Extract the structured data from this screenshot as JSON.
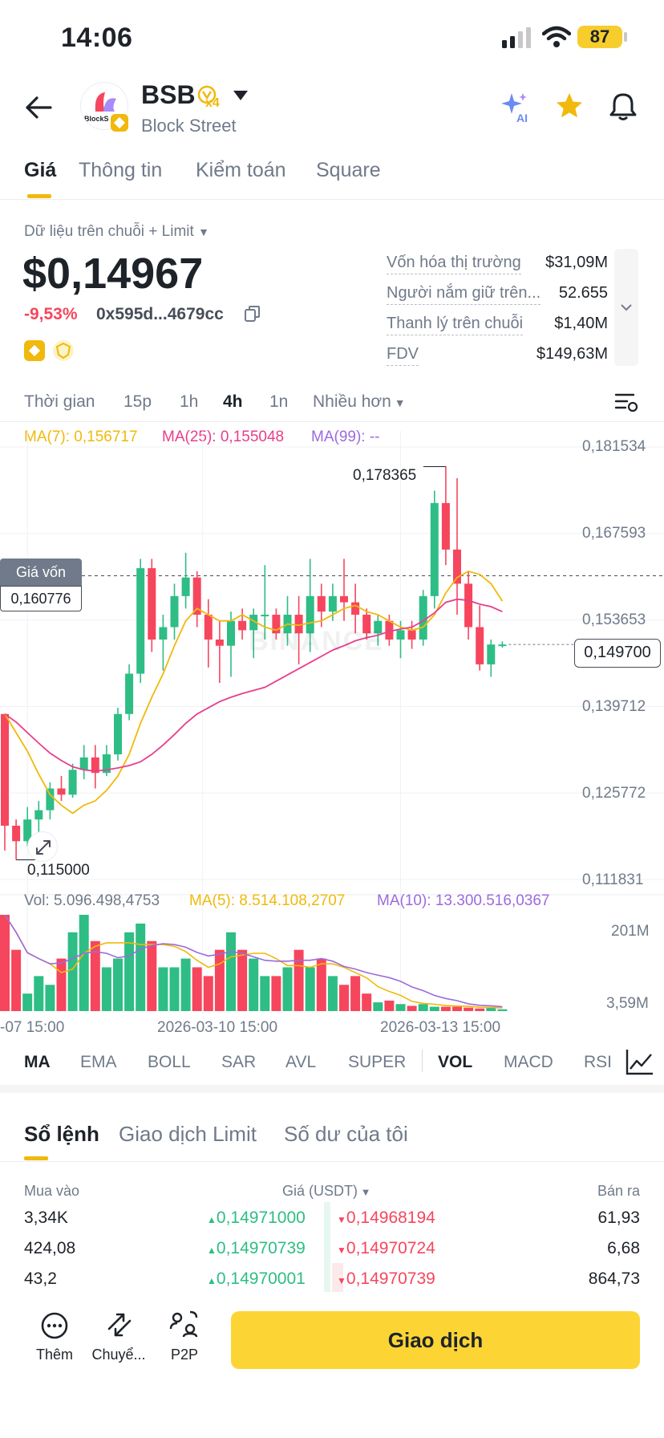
{
  "status_bar": {
    "time": "14:06",
    "battery": "87"
  },
  "header": {
    "logo_text": "BlockS",
    "symbol": "BSB",
    "multiplier": "x4",
    "name": "Block Street"
  },
  "tabs": [
    {
      "label": "Giá",
      "active": true
    },
    {
      "label": "Thông tin",
      "active": false
    },
    {
      "label": "Kiểm toán",
      "active": false
    },
    {
      "label": "Square",
      "active": false
    }
  ],
  "price_panel": {
    "source_label": "Dữ liệu trên chuỗi + Limit",
    "price": "$0,14967",
    "change_pct": "-9,53%",
    "contract": "0x595d...4679cc",
    "stats": [
      {
        "label": "Vốn hóa thị trường",
        "value": "$31,09M"
      },
      {
        "label": "Người nắm giữ trên...",
        "value": "52.655"
      },
      {
        "label": "Thanh lý trên chuỗi",
        "value": "$1,40M"
      },
      {
        "label": "FDV",
        "value": "$149,63M"
      }
    ]
  },
  "timeframes": [
    "Thời gian",
    "15p",
    "1h",
    "4h",
    "1n",
    "Nhiều hơn"
  ],
  "active_timeframe": "4h",
  "chart": {
    "ma_labels": {
      "ma7": "MA(7): 0,156717",
      "ma25": "MA(25): 0,155048",
      "ma99": "MA(99): --"
    },
    "cost_label": "Giá vốn",
    "cost_value": "0,160776",
    "current_price_label": "0,149700",
    "high_label": "0,178365",
    "low_label": "0,115000",
    "watermark": "BINANCE",
    "y_ticks": [
      "0,181534",
      "0,167593",
      "0,153653",
      "0,139712",
      "0,125772",
      "0,111831"
    ],
    "vol_labels": {
      "vol": "Vol: 5.096.498,4753",
      "ma5": "MA(5): 8.514.108,2707",
      "ma10": "MA(10): 13.300.516,0367"
    },
    "vol_ticks": [
      "201M",
      "3,59M"
    ],
    "x_ticks": [
      "-07 15:00",
      "2026-03-10 15:00",
      "2026-03-13 15:00"
    ],
    "colors": {
      "up": "#2ebd85",
      "down": "#f6465d",
      "ma7": "#f0b90b",
      "ma25": "#e83e8c",
      "ma99": "#9c6ade"
    }
  },
  "chart_data": {
    "type": "candlestick",
    "x_ticks": [
      "-07 15:00",
      "2026-03-10 15:00",
      "2026-03-13 15:00"
    ],
    "ylim": [
      0.111831,
      0.181534
    ],
    "high": 0.178365,
    "low": 0.115,
    "last": 0.1497,
    "candles": [
      {
        "o": 0.1385,
        "h": 0.1385,
        "l": 0.1165,
        "c": 0.1205
      },
      {
        "o": 0.1205,
        "h": 0.1215,
        "l": 0.115,
        "c": 0.118
      },
      {
        "o": 0.118,
        "h": 0.1235,
        "l": 0.1172,
        "c": 0.1215
      },
      {
        "o": 0.1215,
        "h": 0.1245,
        "l": 0.1195,
        "c": 0.123
      },
      {
        "o": 0.123,
        "h": 0.1275,
        "l": 0.1215,
        "c": 0.1265
      },
      {
        "o": 0.1265,
        "h": 0.1285,
        "l": 0.1245,
        "c": 0.1255
      },
      {
        "o": 0.1255,
        "h": 0.1305,
        "l": 0.125,
        "c": 0.1295
      },
      {
        "o": 0.1295,
        "h": 0.1335,
        "l": 0.128,
        "c": 0.1315
      },
      {
        "o": 0.1315,
        "h": 0.1335,
        "l": 0.1265,
        "c": 0.129
      },
      {
        "o": 0.129,
        "h": 0.1335,
        "l": 0.1285,
        "c": 0.132
      },
      {
        "o": 0.132,
        "h": 0.1395,
        "l": 0.131,
        "c": 0.1385
      },
      {
        "o": 0.1385,
        "h": 0.1465,
        "l": 0.1375,
        "c": 0.145
      },
      {
        "o": 0.145,
        "h": 0.1635,
        "l": 0.1435,
        "c": 0.162
      },
      {
        "o": 0.162,
        "h": 0.1635,
        "l": 0.1485,
        "c": 0.1505
      },
      {
        "o": 0.1505,
        "h": 0.1545,
        "l": 0.1455,
        "c": 0.1525
      },
      {
        "o": 0.1525,
        "h": 0.1595,
        "l": 0.1505,
        "c": 0.1575
      },
      {
        "o": 0.1575,
        "h": 0.1645,
        "l": 0.1555,
        "c": 0.1605
      },
      {
        "o": 0.1605,
        "h": 0.1615,
        "l": 0.1525,
        "c": 0.1545
      },
      {
        "o": 0.1545,
        "h": 0.157,
        "l": 0.146,
        "c": 0.1505
      },
      {
        "o": 0.1505,
        "h": 0.1535,
        "l": 0.1435,
        "c": 0.1495
      },
      {
        "o": 0.1495,
        "h": 0.155,
        "l": 0.1445,
        "c": 0.1535
      },
      {
        "o": 0.1535,
        "h": 0.1555,
        "l": 0.1505,
        "c": 0.152
      },
      {
        "o": 0.152,
        "h": 0.1555,
        "l": 0.1475,
        "c": 0.1545
      },
      {
        "o": 0.1545,
        "h": 0.1625,
        "l": 0.1505,
        "c": 0.1545
      },
      {
        "o": 0.1545,
        "h": 0.1555,
        "l": 0.1505,
        "c": 0.1515
      },
      {
        "o": 0.1515,
        "h": 0.1575,
        "l": 0.1495,
        "c": 0.1545
      },
      {
        "o": 0.1545,
        "h": 0.1575,
        "l": 0.1465,
        "c": 0.1515
      },
      {
        "o": 0.1515,
        "h": 0.1635,
        "l": 0.1485,
        "c": 0.1575
      },
      {
        "o": 0.1575,
        "h": 0.1595,
        "l": 0.1525,
        "c": 0.155
      },
      {
        "o": 0.155,
        "h": 0.1595,
        "l": 0.1535,
        "c": 0.1575
      },
      {
        "o": 0.1575,
        "h": 0.1635,
        "l": 0.1535,
        "c": 0.1565
      },
      {
        "o": 0.1565,
        "h": 0.1595,
        "l": 0.1515,
        "c": 0.1545
      },
      {
        "o": 0.1545,
        "h": 0.1555,
        "l": 0.1505,
        "c": 0.1515
      },
      {
        "o": 0.1515,
        "h": 0.1545,
        "l": 0.1495,
        "c": 0.1535
      },
      {
        "o": 0.1535,
        "h": 0.1545,
        "l": 0.1495,
        "c": 0.1505
      },
      {
        "o": 0.1505,
        "h": 0.1535,
        "l": 0.1475,
        "c": 0.152
      },
      {
        "o": 0.152,
        "h": 0.1535,
        "l": 0.149,
        "c": 0.1505
      },
      {
        "o": 0.1505,
        "h": 0.1585,
        "l": 0.1495,
        "c": 0.1575
      },
      {
        "o": 0.1575,
        "h": 0.1745,
        "l": 0.1555,
        "c": 0.1725
      },
      {
        "o": 0.1725,
        "h": 0.1784,
        "l": 0.1625,
        "c": 0.165
      },
      {
        "o": 0.165,
        "h": 0.1765,
        "l": 0.1545,
        "c": 0.1595
      },
      {
        "o": 0.1595,
        "h": 0.1615,
        "l": 0.1505,
        "c": 0.1525
      },
      {
        "o": 0.1525,
        "h": 0.156,
        "l": 0.1455,
        "c": 0.1465
      },
      {
        "o": 0.1465,
        "h": 0.1505,
        "l": 0.1445,
        "c": 0.1497
      },
      {
        "o": 0.1497,
        "h": 0.1502,
        "l": 0.1492,
        "c": 0.1497
      }
    ],
    "ma7": [
      0.1385,
      0.1355,
      0.1325,
      0.1288,
      0.1255,
      0.1238,
      0.1225,
      0.1238,
      0.1245,
      0.1262,
      0.1285,
      0.132,
      0.137,
      0.1412,
      0.145,
      0.1495,
      0.1535,
      0.1555,
      0.1545,
      0.1535,
      0.1535,
      0.1545,
      0.1535,
      0.1525,
      0.152,
      0.153,
      0.1528,
      0.1532,
      0.1535,
      0.1545,
      0.1555,
      0.156,
      0.155,
      0.1545,
      0.1535,
      0.1525,
      0.152,
      0.1525,
      0.1545,
      0.158,
      0.1605,
      0.1615,
      0.161,
      0.1595,
      0.1567
    ],
    "ma25": [
      0.1385,
      0.1372,
      0.1355,
      0.1338,
      0.1322,
      0.131,
      0.13,
      0.1295,
      0.1293,
      0.1295,
      0.1298,
      0.1302,
      0.1308,
      0.132,
      0.1335,
      0.1352,
      0.137,
      0.1385,
      0.1395,
      0.1405,
      0.1412,
      0.1418,
      0.1423,
      0.1428,
      0.1438,
      0.1448,
      0.1458,
      0.1468,
      0.1478,
      0.1488,
      0.1495,
      0.1503,
      0.1508,
      0.1512,
      0.1518,
      0.1522,
      0.1525,
      0.1535,
      0.1548,
      0.1565,
      0.157,
      0.1568,
      0.1562,
      0.1558,
      0.155
    ],
    "volume_mf": [
      11,
      7,
      2,
      4,
      3,
      6,
      9,
      11,
      8,
      5,
      6,
      9,
      10,
      8,
      5,
      5,
      6,
      5,
      4,
      7,
      9,
      7,
      6,
      4,
      4,
      5,
      7,
      5,
      6,
      4,
      3,
      4,
      2,
      1,
      1.2,
      0.8,
      0.6,
      0.8,
      0.5,
      0.5,
      0.5,
      0.4,
      0.3,
      0.4,
      0.2
    ],
    "y_tick_labels": [
      "0,181534",
      "0,167593",
      "0,153653",
      "0,139712",
      "0,125772",
      "0,111831"
    ],
    "volume_ticks": [
      "201M",
      "3,59M"
    ]
  },
  "indicators": [
    "MA",
    "EMA",
    "BOLL",
    "SAR",
    "AVL",
    "SUPER",
    "VOL",
    "MACD",
    "RSI"
  ],
  "orderbook": {
    "tabs": [
      "Sổ lệnh",
      "Giao dịch Limit",
      "Số dư của tôi"
    ],
    "headers": {
      "buy": "Mua vào",
      "price": "Giá (USDT)",
      "sell": "Bán ra"
    },
    "rows": [
      {
        "buy_qty": "3,34K",
        "bid": "0,14971000",
        "ask": "0,14968194",
        "sell_qty": "61,93"
      },
      {
        "buy_qty": "424,08",
        "bid": "0,14970739",
        "ask": "0,14970724",
        "sell_qty": "6,68"
      },
      {
        "buy_qty": "43,2",
        "bid": "0,14970001",
        "ask": "0,14970739",
        "sell_qty": "864,73"
      }
    ]
  },
  "bottom_bar": {
    "more": "Thêm",
    "transfer": "Chuyể...",
    "p2p": "P2P",
    "trade": "Giao dịch"
  }
}
